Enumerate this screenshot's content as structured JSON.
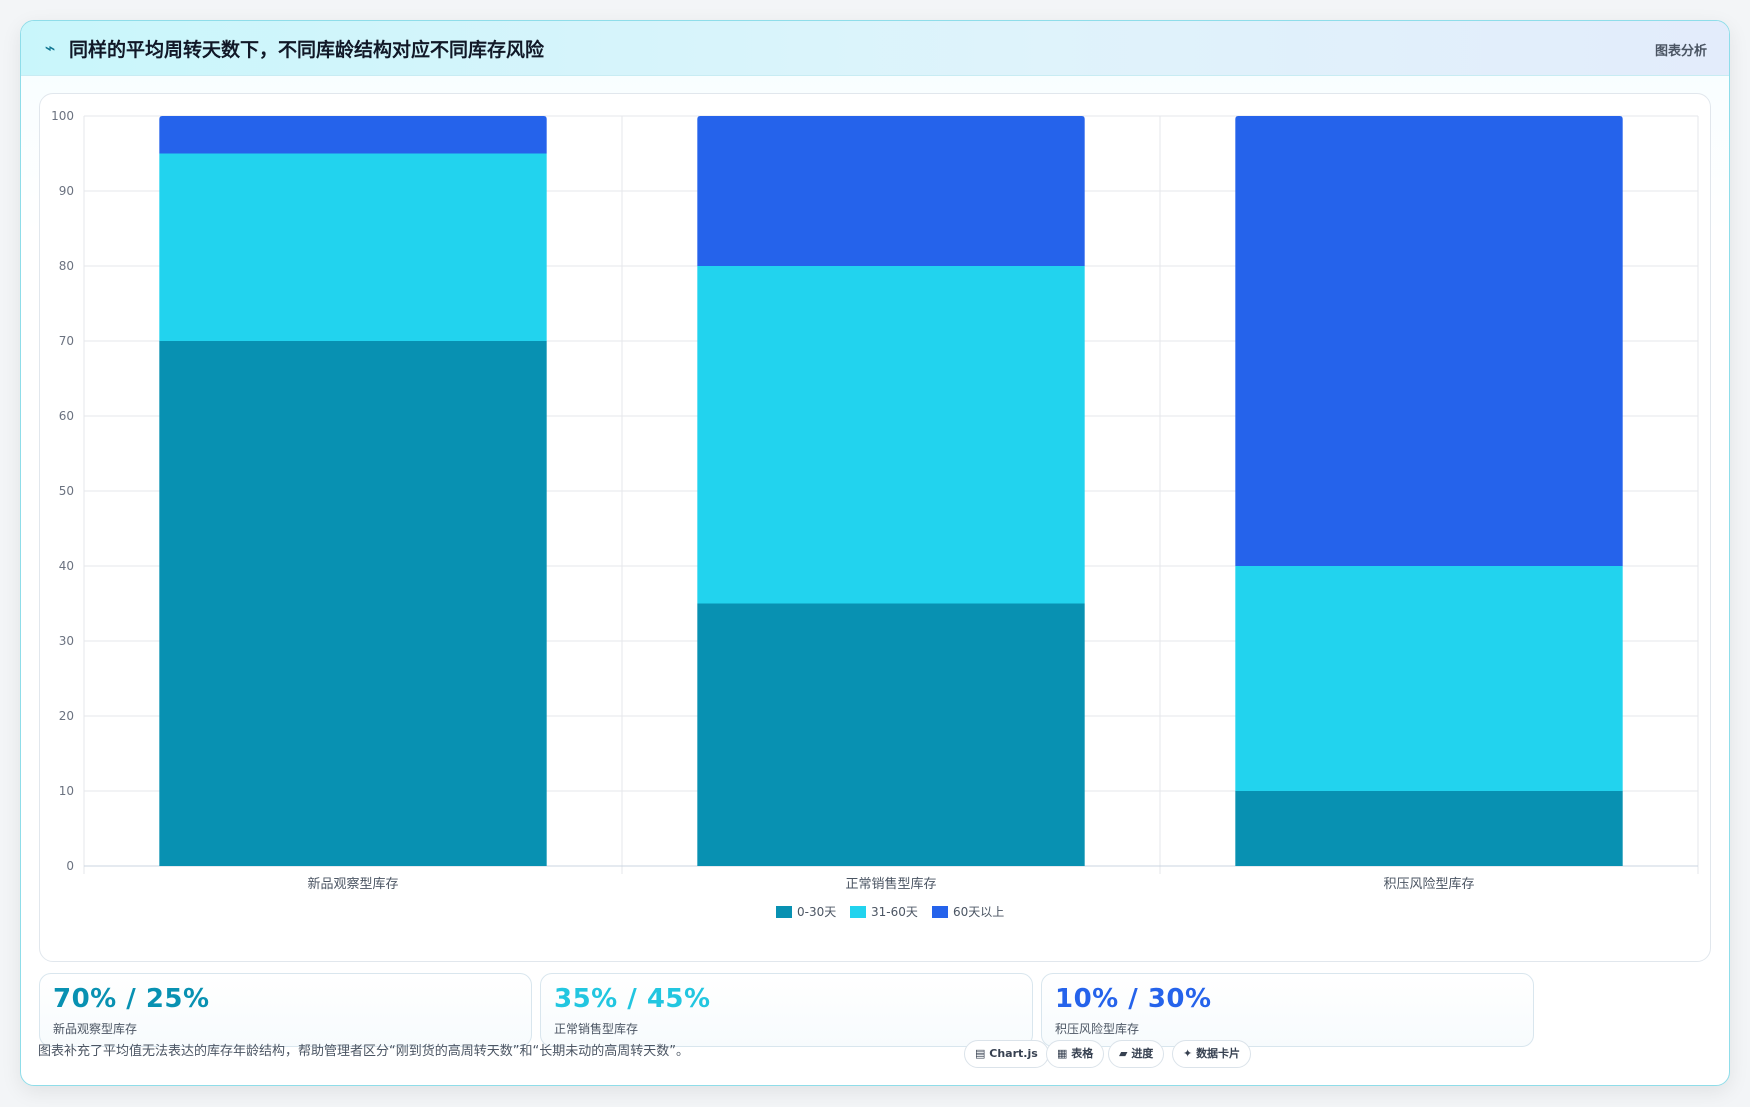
{
  "header": {
    "icon": "trend-line-icon",
    "icon_glyph": "⌁",
    "title": "同样的平均周转天数下，不同库龄结构对应不同库存风险",
    "tag": "图表分析"
  },
  "chart_data": {
    "type": "bar",
    "stacked": true,
    "categories": [
      "新品观察型库存",
      "正常销售型库存",
      "积压风险型库存"
    ],
    "series": [
      {
        "name": "0-30天",
        "values": [
          70,
          35,
          10
        ],
        "color": "#0891b2"
      },
      {
        "name": "31-60天",
        "values": [
          25,
          45,
          30
        ],
        "color": "#22d3ee"
      },
      {
        "name": "60天以上",
        "values": [
          5,
          20,
          60
        ],
        "color": "#2563eb"
      }
    ],
    "ylim": [
      0,
      100
    ],
    "yticks": [
      0,
      10,
      20,
      30,
      40,
      50,
      60,
      70,
      80,
      90,
      100
    ],
    "grid": true,
    "legend": "bottom"
  },
  "kpis": [
    {
      "value": "70% / 25%",
      "label": "新品观察型库存",
      "color": "#0891b2"
    },
    {
      "value": "35% / 45%",
      "label": "正常销售型库存",
      "color": "#22c6e0"
    },
    {
      "value": "10% / 30%",
      "label": "积压风险型库存",
      "color": "#2563eb"
    }
  ],
  "footer": {
    "note": "图表补充了平均值无法表达的库存年龄结构，帮助管理者区分“刚到货的高周转天数”和“长期未动的高周转天数”。",
    "chips": [
      {
        "icon": "chart-icon",
        "glyph": "▤",
        "label": "Chart.js"
      },
      {
        "icon": "table-icon",
        "glyph": "▦",
        "label": "表格"
      },
      {
        "icon": "progress-icon",
        "glyph": "▰",
        "label": "进度"
      },
      {
        "icon": "card-icon",
        "glyph": "✦",
        "label": "数据卡片"
      }
    ]
  }
}
